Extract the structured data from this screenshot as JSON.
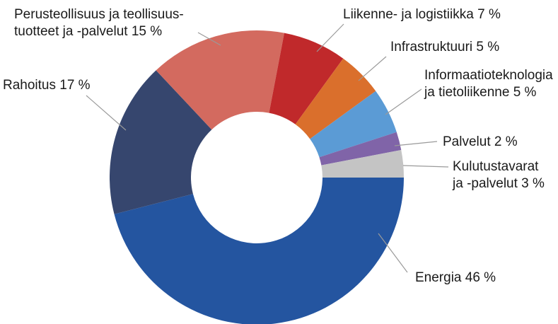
{
  "chart_data": {
    "type": "pie",
    "donut": true,
    "title": "",
    "legend": "none",
    "slices": [
      {
        "lines": [
          "Energia 46 %"
        ],
        "value": 46,
        "color": "#2455A0"
      },
      {
        "lines": [
          "Rahoitus 17 %"
        ],
        "value": 17,
        "color": "#36466E"
      },
      {
        "lines": [
          "Perusteollisuus ja teollisuus-",
          "tuotteet ja -palvelut 15 %"
        ],
        "value": 15,
        "color": "#D36A5F"
      },
      {
        "lines": [
          "Liikenne- ja logistiikka 7 %"
        ],
        "value": 7,
        "color": "#C0292B"
      },
      {
        "lines": [
          "Infrastruktuuri 5 %"
        ],
        "value": 5,
        "color": "#DA6F2C"
      },
      {
        "lines": [
          "Informaatioteknologia",
          "ja tietoliikenne 5 %"
        ],
        "value": 5,
        "color": "#5B9BD5"
      },
      {
        "lines": [
          "Palvelut 2 %"
        ],
        "value": 2,
        "color": "#8064A8"
      },
      {
        "lines": [
          "Kulutustavarat",
          "ja -palvelut 3 %"
        ],
        "value": 3,
        "color": "#C4C4C4"
      }
    ]
  }
}
